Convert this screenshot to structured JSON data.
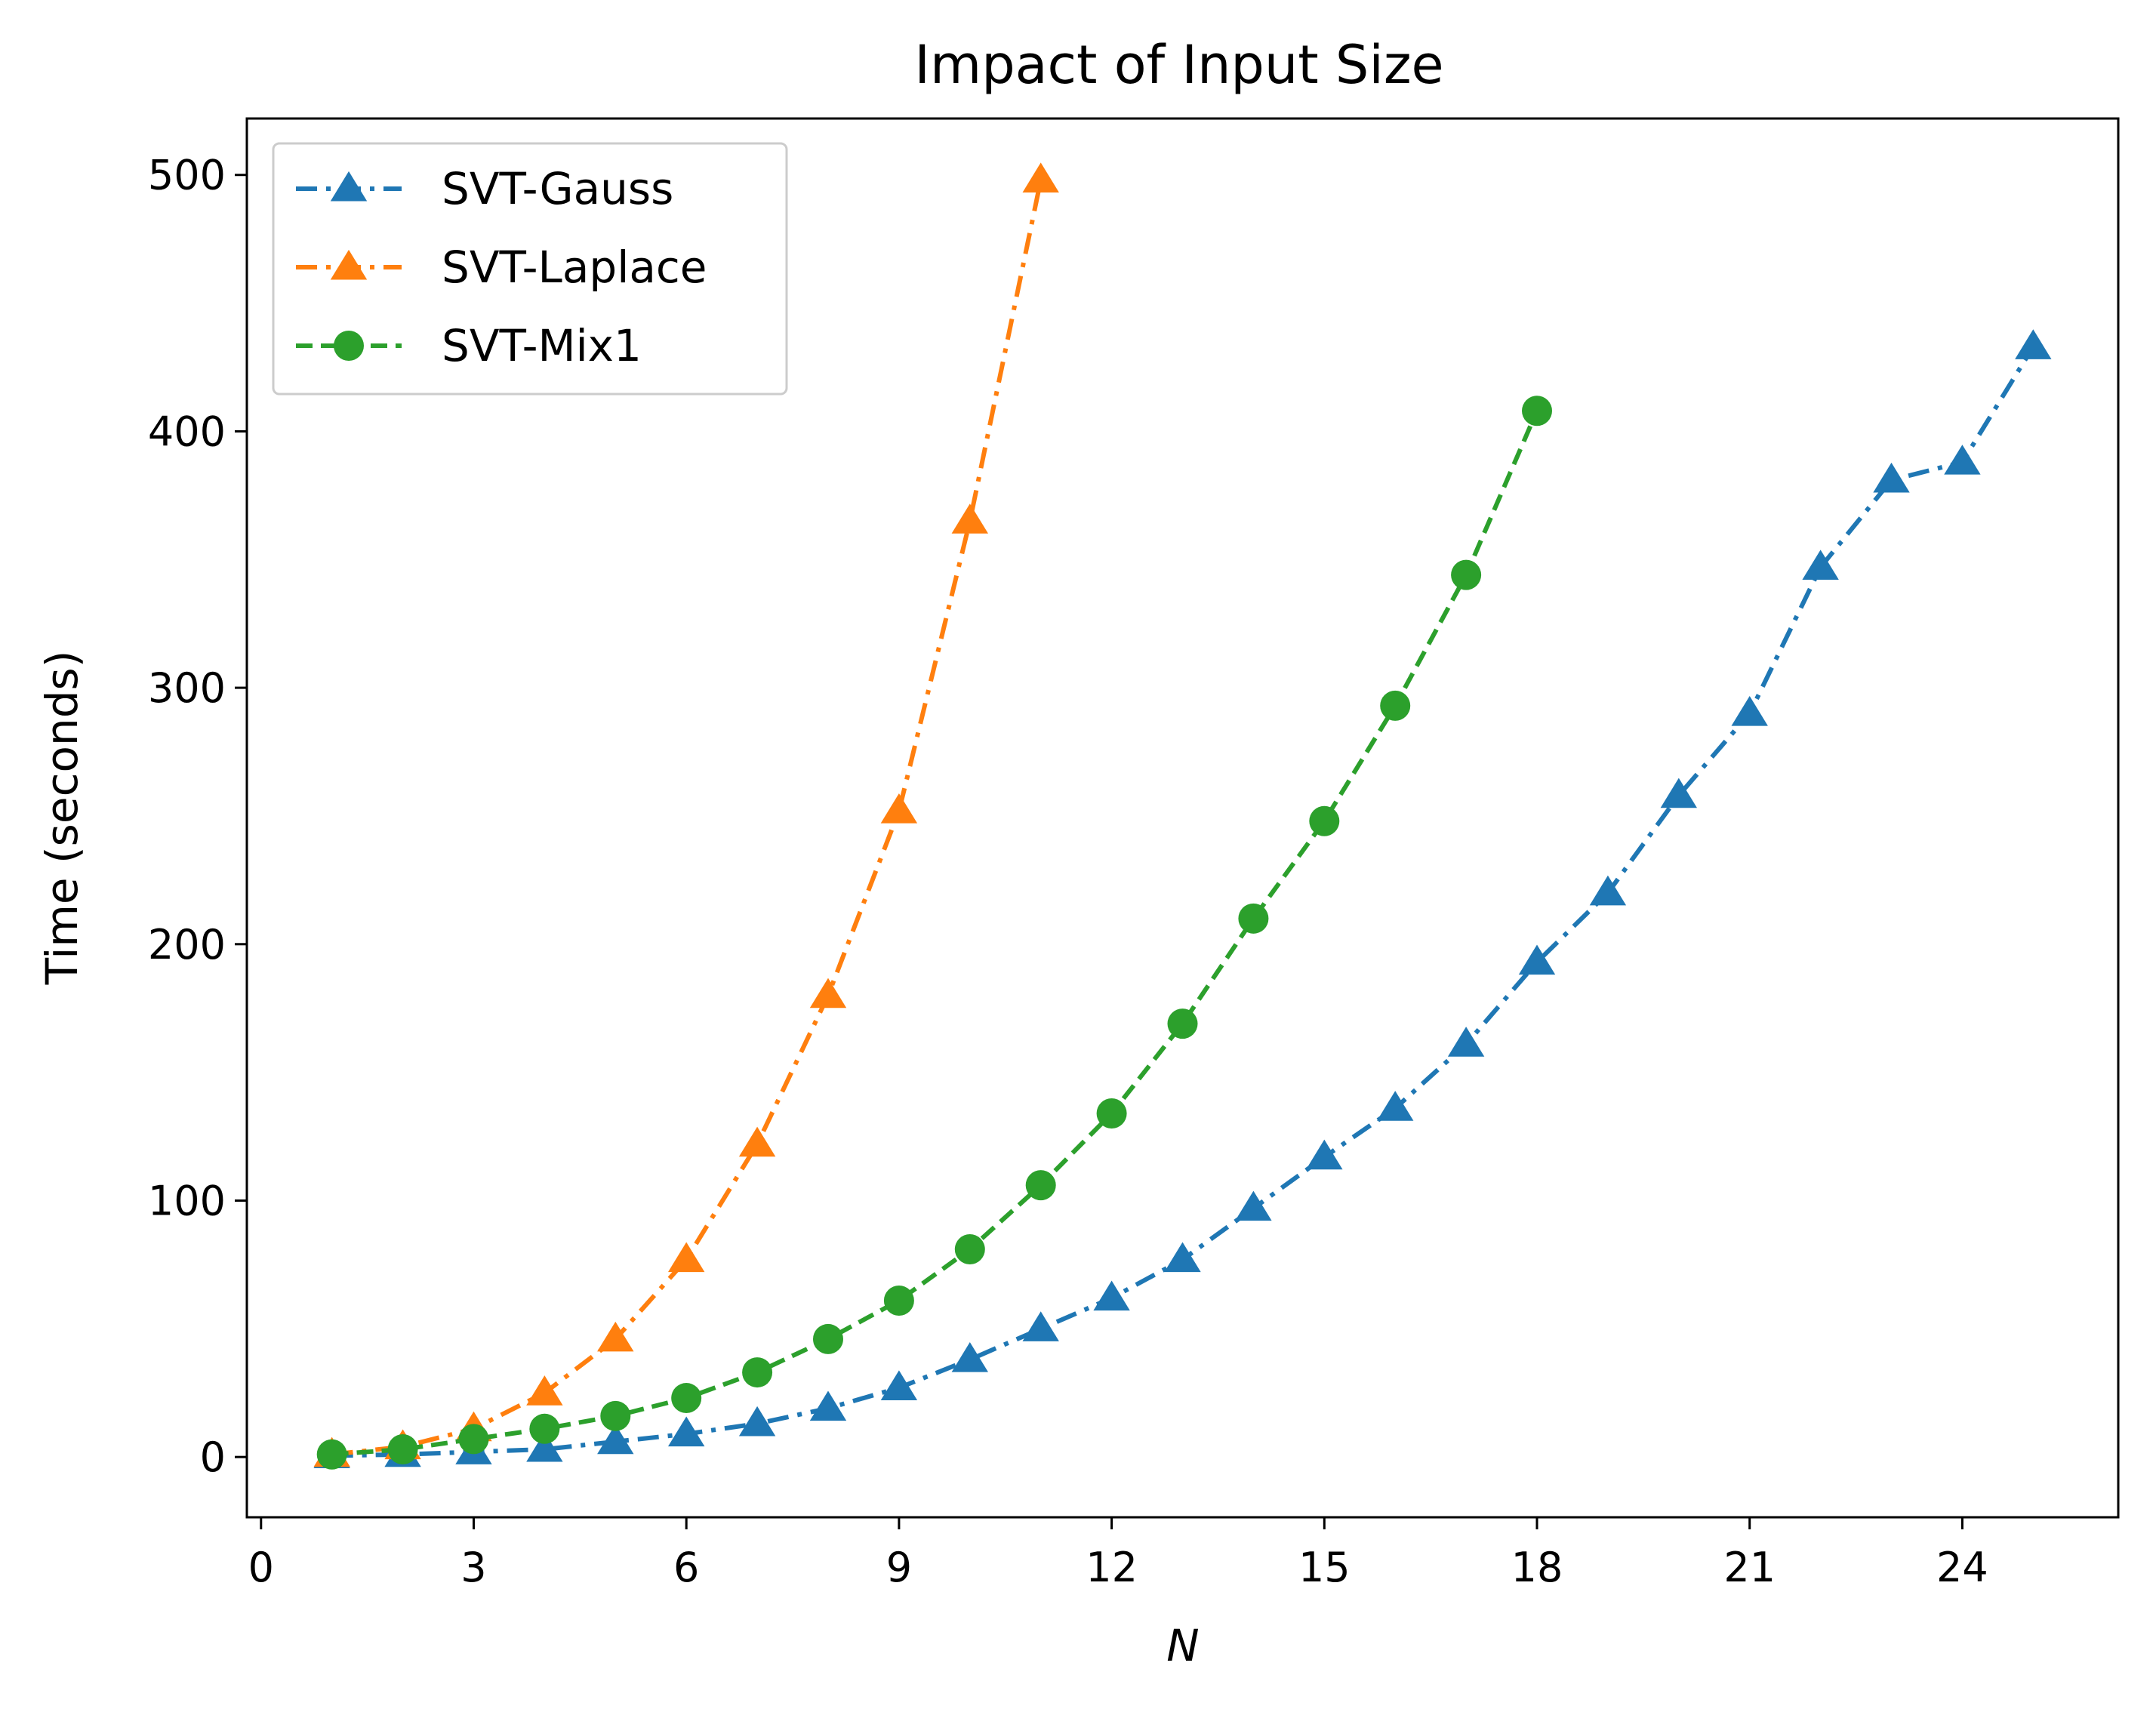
{
  "chart_data": {
    "type": "line",
    "title": "Impact of Input Size",
    "xlabel": "N",
    "ylabel": "Time (seconds)",
    "xlim": [
      -0.2,
      26.2
    ],
    "ylim": [
      -23.5,
      522
    ],
    "xticks": [
      0,
      3,
      6,
      9,
      12,
      15,
      18,
      21,
      24
    ],
    "yticks": [
      0,
      100,
      200,
      300,
      400,
      500
    ],
    "grid": false,
    "legend": "upper-left",
    "series": [
      {
        "name": "SVT-Gauss",
        "color": "#1f77b4",
        "marker": "triangle",
        "linestyle": "dashdot",
        "x": [
          1,
          2,
          3,
          4,
          5,
          6,
          7,
          8,
          9,
          10,
          11,
          12,
          13,
          14,
          15,
          16,
          17,
          18,
          19,
          20,
          21,
          22,
          23,
          24,
          25
        ],
        "y": [
          0.5,
          1,
          2,
          3,
          6,
          9,
          13,
          19,
          27,
          38,
          50,
          62,
          77,
          97,
          117,
          136,
          161,
          193,
          220,
          258,
          290,
          347,
          381,
          388,
          433
        ]
      },
      {
        "name": "SVT-Laplace",
        "color": "#ff7f0e",
        "marker": "triangle",
        "linestyle": "dashdot",
        "x": [
          1,
          2,
          3,
          4,
          5,
          6,
          7,
          8,
          9,
          10,
          11
        ],
        "y": [
          1,
          4,
          11,
          25,
          46,
          77,
          122,
          180,
          252,
          365,
          498
        ]
      },
      {
        "name": "SVT-Mix1",
        "color": "#2ca02c",
        "marker": "circle",
        "linestyle": "dashed",
        "x": [
          1,
          2,
          3,
          4,
          5,
          6,
          7,
          8,
          9,
          10,
          11,
          12,
          13,
          14,
          15,
          16,
          17,
          18
        ],
        "y": [
          1,
          3,
          7,
          11,
          16,
          23,
          33,
          46,
          61,
          81,
          106,
          134,
          169,
          210,
          248,
          293,
          344,
          408
        ]
      }
    ]
  }
}
